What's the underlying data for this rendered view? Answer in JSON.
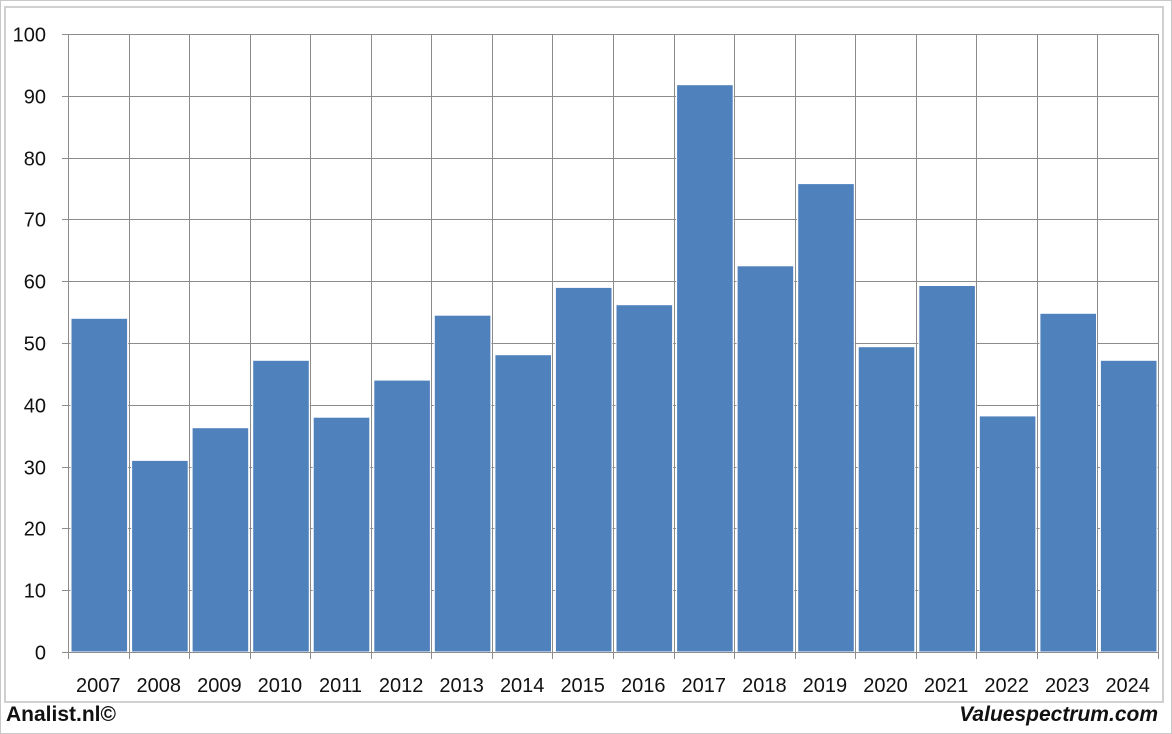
{
  "chart_data": {
    "type": "bar",
    "categories": [
      "2007",
      "2008",
      "2009",
      "2010",
      "2011",
      "2012",
      "2013",
      "2014",
      "2015",
      "2016",
      "2017",
      "2018",
      "2019",
      "2020",
      "2021",
      "2022",
      "2023",
      "2024"
    ],
    "values": [
      54,
      31,
      36.3,
      47.2,
      38,
      44,
      54.5,
      48.1,
      59,
      56.2,
      91.8,
      62.5,
      75.8,
      49.4,
      59.3,
      38.2,
      54.8,
      47.2
    ],
    "ylim": [
      0,
      100
    ],
    "yticks": [
      0,
      10,
      20,
      30,
      40,
      50,
      60,
      70,
      80,
      90,
      100
    ],
    "grid": true,
    "bar_color": "#4f81bd",
    "grid_color": "#8c8c8c"
  },
  "footer": {
    "left": "Analist.nl©",
    "right": "Valuespectrum.com"
  }
}
